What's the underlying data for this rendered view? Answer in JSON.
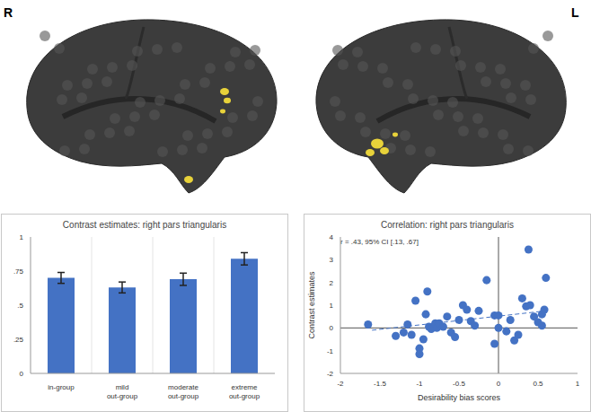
{
  "hemisphere_labels": [
    "R",
    "L"
  ],
  "chart_data": [
    {
      "type": "bar",
      "title": "Contrast estimates: right pars triangularis",
      "categories": [
        "in-group",
        "mild out-group",
        "moderate out-group",
        "extreme out-group"
      ],
      "values": [
        0.7,
        0.63,
        0.69,
        0.84
      ],
      "errors": [
        0.04,
        0.04,
        0.045,
        0.045
      ],
      "color": "#4472c4",
      "ylim": [
        0,
        1
      ],
      "yticks": [
        0,
        {
          "value": 0.25,
          "label": ".25"
        },
        {
          "value": 0.5,
          "label": ".5"
        },
        {
          "value": 0.75,
          "label": ".75"
        },
        1
      ],
      "grid": true
    },
    {
      "type": "scatter",
      "title": "Correlation: right pars triangularis",
      "annotation": "r = .43, 95% CI [.13, .67]",
      "x_label": "Desirability bias scores",
      "y_label": "Contrast estimates",
      "color": "#4472c4",
      "marker": "circle",
      "x": [
        -1.65,
        -1.3,
        -1.2,
        -1.15,
        -1.1,
        -1.05,
        -1.0,
        -1.0,
        -0.95,
        -0.92,
        -0.9,
        -0.88,
        -0.85,
        -0.8,
        -0.78,
        -0.75,
        -0.7,
        -0.65,
        -0.6,
        -0.55,
        -0.5,
        -0.45,
        -0.4,
        -0.35,
        -0.3,
        -0.25,
        -0.15,
        -0.05,
        -0.05,
        0.0,
        0.0,
        0.1,
        0.15,
        0.2,
        0.25,
        0.3,
        0.35,
        0.38,
        0.4,
        0.45,
        0.5,
        0.55,
        0.58,
        0.6,
        0.55
      ],
      "y": [
        0.15,
        -0.35,
        -0.2,
        0.15,
        -0.3,
        1.2,
        -0.9,
        -1.15,
        -0.5,
        0.6,
        1.6,
        0.05,
        -0.05,
        0.2,
        0.0,
        0.2,
        0.05,
        0.5,
        -0.2,
        -0.4,
        0.35,
        1.0,
        0.8,
        0.3,
        0.1,
        0.75,
        2.1,
        0.55,
        -0.7,
        0.55,
        0.0,
        -0.15,
        0.35,
        -0.55,
        -0.3,
        1.3,
        0.95,
        3.45,
        1.0,
        0.5,
        0.25,
        0.6,
        0.8,
        2.2,
        0.1
      ],
      "trend_line": {
        "x": [
          -1.6,
          0.6
        ],
        "y": [
          -0.1,
          0.75
        ],
        "line_style": "dashed"
      },
      "xlim": [
        -2,
        1
      ],
      "xticks": [
        -2,
        -1.5,
        -1,
        -0.5,
        0,
        0.5,
        1
      ],
      "ylim": [
        -2,
        4
      ],
      "yticks": [
        -2,
        -1,
        0,
        1,
        2,
        3,
        4
      ]
    }
  ]
}
